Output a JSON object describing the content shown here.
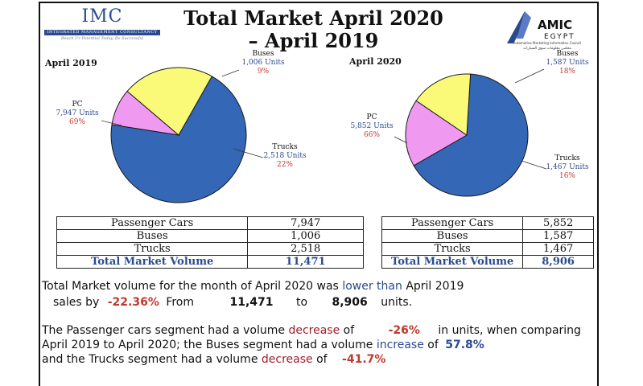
{
  "title": {
    "line1": "Total Market April 2020",
    "line2": "– April 2019"
  },
  "imc_logo": {
    "name": "IMC",
    "bar": "INTEGRATED MANAGEMENT CONSULTANCY",
    "tagline": "Reach Ur Potential Today, Be Successful"
  },
  "amic_logo": {
    "name": "AMIC",
    "country": "EGYPT",
    "subtitle": "Automotive Marketing Information Council",
    "arabic": "مجلس معلومات سوق السيارات"
  },
  "colors": {
    "pc": "#3467b5",
    "buses": "#ef9af0",
    "trucks": "#fafa78",
    "label_blue": "#2b4a8e",
    "label_red": "#c0392b"
  },
  "chart_data": [
    {
      "type": "pie",
      "title": "April 2019",
      "slices": [
        {
          "label": "PC",
          "units": "7,947 Units",
          "value": 7947,
          "percent": "69%"
        },
        {
          "label": "Buses",
          "units": "1,006 Units",
          "value": 1006,
          "percent": "9%"
        },
        {
          "label": "Trucks",
          "units": "2,518 Units",
          "value": 2518,
          "percent": "22%"
        }
      ]
    },
    {
      "type": "pie",
      "title": "April 2020",
      "slices": [
        {
          "label": "PC",
          "units": "5,852 Units",
          "value": 5852,
          "percent": "66%"
        },
        {
          "label": "Buses",
          "units": "1,587 Units",
          "value": 1587,
          "percent": "18%"
        },
        {
          "label": "Trucks",
          "units": "1,467 Units",
          "value": 1467,
          "percent": "16%"
        }
      ]
    }
  ],
  "tables": [
    {
      "rows": [
        {
          "label": "Passenger Cars",
          "value": "7,947"
        },
        {
          "label": "Buses",
          "value": "1,006"
        },
        {
          "label": "Trucks",
          "value": "2,518"
        }
      ],
      "total": {
        "label": "Total Market Volume",
        "value": "11,471"
      }
    },
    {
      "rows": [
        {
          "label": "Passenger Cars",
          "value": "5,852"
        },
        {
          "label": "Buses",
          "value": "1,587"
        },
        {
          "label": "Trucks",
          "value": "1,467"
        }
      ],
      "total": {
        "label": "Total Market Volume",
        "value": "8,906"
      }
    }
  ],
  "summary": {
    "p1_a": "Total Market volume for the month of April 2020 was",
    "p1_b": "lower than",
    "p1_c": "April 2019",
    "p2_a": "sales by",
    "p2_pct": "-22.36%",
    "p2_from": "From",
    "p2_v1": "11,471",
    "p2_to": "to",
    "p2_v2": "8,906",
    "p2_units": "units.",
    "p3_a": "The Passenger cars segment had a volume",
    "p3_dec": "decrease",
    "p3_of": "of",
    "p3_pct": "-26%",
    "p3_b": "in units, when comparing",
    "p4_a": "April 2019 to April 2020; the Buses segment had a volume",
    "p4_inc": "increase",
    "p4_of": "of",
    "p4_pct": "57.8%",
    "p5_a": "and the Trucks segment had a volume",
    "p5_dec": "decrease",
    "p5_of": "of",
    "p5_pct": "-41.7%"
  }
}
